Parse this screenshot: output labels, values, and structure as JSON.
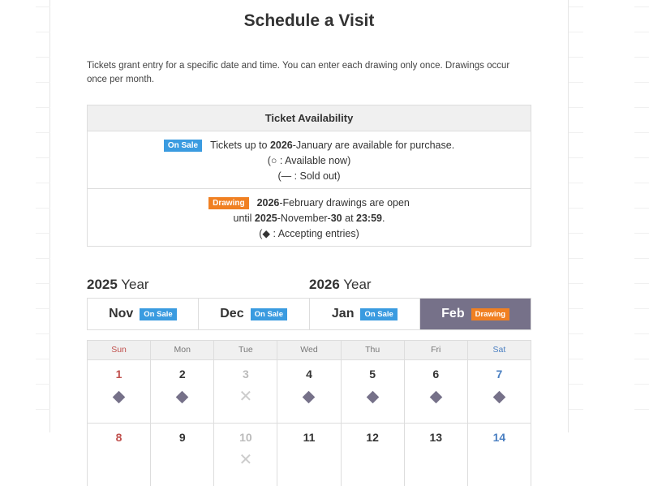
{
  "title": "Schedule a Visit",
  "intro": "Tickets grant entry for a specific date and time. You can enter each drawing only once. Drawings occur once per month.",
  "availability": {
    "header": "Ticket Availability",
    "on_sale": {
      "badge": "On Sale",
      "pre": "Tickets up to ",
      "year": "2026",
      "post": "-January are available for purchase.",
      "legend1": "(○ : Available now)",
      "legend2": "(— : Sold out)"
    },
    "drawing": {
      "badge": "Drawing",
      "year": "2026",
      "post": "-February drawings are open",
      "until": "until ",
      "uyear": "2025",
      "umonth": "-November-",
      "uday": "30",
      "at": " at ",
      "time": "23:59",
      "dot": ".",
      "legend": "(◆ : Accepting entries)"
    }
  },
  "years": [
    {
      "num": "2025",
      "label": " Year"
    },
    {
      "num": "2026",
      "label": " Year"
    }
  ],
  "tabs": [
    {
      "month": "Nov",
      "badge": "On Sale"
    },
    {
      "month": "Dec",
      "badge": "On Sale"
    },
    {
      "month": "Jan",
      "badge": "On Sale"
    },
    {
      "month": "Feb",
      "badge": "Drawing",
      "active": true
    }
  ],
  "colors": {
    "on_sale": "#3a9be0",
    "drawing": "#f08022",
    "active_tab": "#767189",
    "sunday": "#c0504d",
    "saturday": "#4a7fc1"
  },
  "calendar": {
    "weekdays": [
      "Sun",
      "Mon",
      "Tue",
      "Wed",
      "Thu",
      "Fri",
      "Sat"
    ],
    "weeks": [
      [
        {
          "d": "1",
          "s": "entry"
        },
        {
          "d": "2",
          "s": "entry"
        },
        {
          "d": "3",
          "s": "closed"
        },
        {
          "d": "4",
          "s": "entry"
        },
        {
          "d": "5",
          "s": "entry"
        },
        {
          "d": "6",
          "s": "entry"
        },
        {
          "d": "7",
          "s": "entry"
        }
      ],
      [
        {
          "d": "8",
          "s": ""
        },
        {
          "d": "9",
          "s": ""
        },
        {
          "d": "10",
          "s": "closed"
        },
        {
          "d": "11",
          "s": ""
        },
        {
          "d": "12",
          "s": ""
        },
        {
          "d": "13",
          "s": ""
        },
        {
          "d": "14",
          "s": ""
        }
      ]
    ]
  }
}
